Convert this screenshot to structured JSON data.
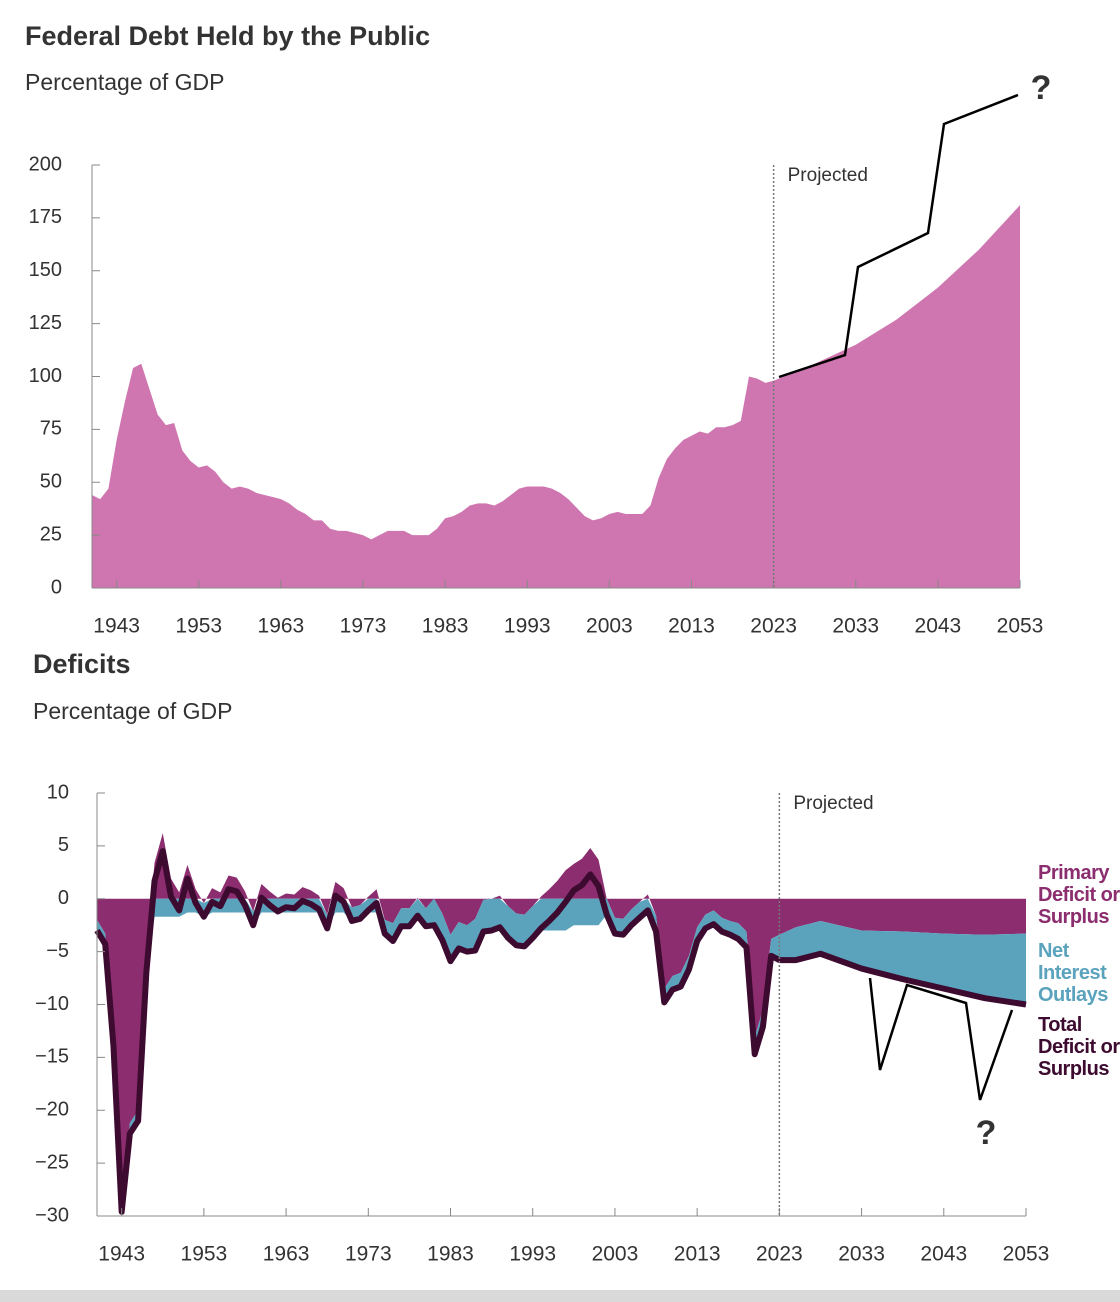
{
  "chart_data": [
    {
      "type": "area",
      "title": "Federal Debt Held by the Public",
      "subtitle": "Percentage of GDP",
      "color": "#cf76b0",
      "x": [
        1940,
        1941,
        1942,
        1943,
        1944,
        1945,
        1946,
        1947,
        1948,
        1949,
        1950,
        1951,
        1952,
        1953,
        1954,
        1955,
        1956,
        1957,
        1958,
        1959,
        1960,
        1961,
        1962,
        1963,
        1964,
        1965,
        1966,
        1967,
        1968,
        1969,
        1970,
        1971,
        1972,
        1973,
        1974,
        1975,
        1976,
        1977,
        1978,
        1979,
        1980,
        1981,
        1982,
        1983,
        1984,
        1985,
        1986,
        1987,
        1988,
        1989,
        1990,
        1991,
        1992,
        1993,
        1994,
        1995,
        1996,
        1997,
        1998,
        1999,
        2000,
        2001,
        2002,
        2003,
        2004,
        2005,
        2006,
        2007,
        2008,
        2009,
        2010,
        2011,
        2012,
        2013,
        2014,
        2015,
        2016,
        2017,
        2018,
        2019,
        2020,
        2021,
        2022,
        2023,
        2028,
        2033,
        2038,
        2043,
        2048,
        2053
      ],
      "values": [
        44,
        42,
        47,
        70,
        88,
        104,
        106,
        94,
        82,
        77,
        78,
        65,
        60,
        57,
        58,
        55,
        50,
        47,
        48,
        47,
        45,
        44,
        43,
        42,
        40,
        37,
        35,
        32,
        32,
        28,
        27,
        27,
        26,
        25,
        23,
        25,
        27,
        27,
        27,
        25,
        25,
        25,
        28,
        33,
        34,
        36,
        39,
        40,
        40,
        39,
        41,
        44,
        47,
        48,
        48,
        48,
        47,
        45,
        42,
        38,
        34,
        32,
        33,
        35,
        36,
        35,
        35,
        35,
        39,
        52,
        61,
        66,
        70,
        72,
        74,
        73,
        76,
        76,
        77,
        79,
        100,
        99,
        97,
        98,
        106,
        115,
        127,
        142,
        160,
        181
      ],
      "xlim": [
        1940,
        2053
      ],
      "xticks": [
        1943,
        1953,
        1963,
        1973,
        1983,
        1993,
        2003,
        2013,
        2023,
        2033,
        2043,
        2053
      ],
      "ylim": [
        0,
        200
      ],
      "yticks": [
        0,
        25,
        50,
        75,
        100,
        125,
        150,
        175,
        200
      ],
      "projected_x": 2023,
      "projected_label": "Projected",
      "annotation": "?"
    },
    {
      "type": "area",
      "title": "Deficits",
      "subtitle": "Percentage of GDP",
      "x": [
        1940,
        1941,
        1942,
        1943,
        1944,
        1945,
        1946,
        1947,
        1948,
        1949,
        1950,
        1951,
        1952,
        1953,
        1954,
        1955,
        1956,
        1957,
        1958,
        1959,
        1960,
        1961,
        1962,
        1963,
        1964,
        1965,
        1966,
        1967,
        1968,
        1969,
        1970,
        1971,
        1972,
        1973,
        1974,
        1975,
        1976,
        1977,
        1978,
        1979,
        1980,
        1981,
        1982,
        1983,
        1984,
        1985,
        1986,
        1987,
        1988,
        1989,
        1990,
        1991,
        1992,
        1993,
        1994,
        1995,
        1996,
        1997,
        1998,
        1999,
        2000,
        2001,
        2002,
        2003,
        2004,
        2005,
        2006,
        2007,
        2008,
        2009,
        2010,
        2011,
        2012,
        2013,
        2014,
        2015,
        2016,
        2017,
        2018,
        2019,
        2020,
        2021,
        2022,
        2023,
        2025,
        2028,
        2033,
        2038,
        2043,
        2048,
        2053
      ],
      "series": [
        {
          "name": "Primary Deficit or Surplus",
          "color": "#8b2d6e",
          "kind": "area",
          "values": [
            -2.0,
            -3.3,
            -12.9,
            -28.6,
            -21.2,
            -20.0,
            -5.3,
            3.4,
            6.2,
            1.9,
            0.6,
            3.2,
            0.9,
            -0.4,
            1.0,
            0.6,
            2.2,
            2.0,
            0.7,
            -1.2,
            1.4,
            0.7,
            0.1,
            0.5,
            0.4,
            1.1,
            0.8,
            0.3,
            -1.5,
            1.6,
            1.0,
            -0.8,
            -0.6,
            0.2,
            0.9,
            -2.0,
            -2.3,
            -0.9,
            -0.9,
            0.1,
            -0.9,
            0.0,
            -1.4,
            -3.4,
            -2.2,
            -2.5,
            -1.9,
            -0.1,
            0.0,
            0.3,
            -0.7,
            -1.4,
            -1.5,
            -0.7,
            0.2,
            0.9,
            1.7,
            2.7,
            3.3,
            3.8,
            4.8,
            3.7,
            0.0,
            -1.8,
            -1.9,
            -1.0,
            -0.3,
            0.4,
            -1.6,
            -8.5,
            -7.3,
            -7.0,
            -5.4,
            -2.7,
            -1.5,
            -1.1,
            -1.8,
            -2.1,
            -2.3,
            -3.1,
            -13.1,
            -10.5,
            -3.8,
            -3.4,
            -2.7,
            -2.1,
            -3.0,
            -3.1,
            -3.3,
            -3.4,
            -3.3
          ]
        },
        {
          "name": "Net Interest Outlays",
          "color": "#5ba3bd",
          "kind": "area",
          "values": [
            -1.0,
            -1.0,
            -1.0,
            -1.0,
            -1.0,
            -1.0,
            -1.7,
            -1.7,
            -1.7,
            -1.7,
            -1.7,
            -1.3,
            -1.3,
            -1.3,
            -1.3,
            -1.3,
            -1.3,
            -1.3,
            -1.3,
            -1.3,
            -1.3,
            -1.3,
            -1.3,
            -1.3,
            -1.3,
            -1.3,
            -1.3,
            -1.3,
            -1.3,
            -1.3,
            -1.3,
            -1.3,
            -1.3,
            -1.3,
            -1.3,
            -1.3,
            -1.7,
            -1.7,
            -1.7,
            -1.7,
            -1.7,
            -2.5,
            -2.5,
            -2.5,
            -2.5,
            -2.5,
            -3.0,
            -3.0,
            -3.0,
            -3.0,
            -3.0,
            -3.0,
            -3.0,
            -3.0,
            -3.0,
            -3.0,
            -3.0,
            -3.0,
            -2.5,
            -2.5,
            -2.5,
            -2.5,
            -1.5,
            -1.5,
            -1.5,
            -1.5,
            -1.5,
            -1.5,
            -1.5,
            -1.3,
            -1.3,
            -1.3,
            -1.3,
            -1.3,
            -1.3,
            -1.3,
            -1.3,
            -1.3,
            -1.5,
            -1.5,
            -1.6,
            -1.6,
            -1.6,
            -2.4,
            -3.1,
            -3.1,
            -3.6,
            -4.5,
            -5.2,
            -6.0,
            -6.7
          ]
        },
        {
          "name": "Total Deficit or Surplus",
          "color": "#3d0a30",
          "kind": "line",
          "values": [
            -3.0,
            -4.3,
            -13.9,
            -29.6,
            -22.2,
            -21.0,
            -7.0,
            1.7,
            4.5,
            0.2,
            -1.1,
            1.9,
            -0.4,
            -1.7,
            -0.3,
            -0.7,
            0.9,
            0.7,
            -0.6,
            -2.5,
            0.1,
            -0.6,
            -1.2,
            -0.8,
            -0.9,
            -0.2,
            -0.5,
            -1.0,
            -2.8,
            0.3,
            -0.3,
            -2.1,
            -1.9,
            -1.1,
            -0.4,
            -3.3,
            -4.0,
            -2.6,
            -2.6,
            -1.6,
            -2.6,
            -2.5,
            -3.9,
            -5.9,
            -4.7,
            -5.0,
            -4.9,
            -3.1,
            -3.0,
            -2.7,
            -3.7,
            -4.4,
            -4.5,
            -3.7,
            -2.8,
            -2.1,
            -1.3,
            -0.3,
            0.8,
            1.3,
            2.3,
            1.2,
            -1.5,
            -3.3,
            -3.4,
            -2.5,
            -1.8,
            -1.1,
            -3.1,
            -9.8,
            -8.6,
            -8.3,
            -6.7,
            -4.0,
            -2.8,
            -2.4,
            -3.1,
            -3.4,
            -3.8,
            -4.6,
            -14.7,
            -12.1,
            -5.4,
            -5.8,
            -5.8,
            -5.2,
            -6.6,
            -7.6,
            -8.5,
            -9.4,
            -10.0
          ]
        }
      ],
      "xlim": [
        1940,
        2053
      ],
      "xticks": [
        1943,
        1953,
        1963,
        1973,
        1983,
        1993,
        2003,
        2013,
        2023,
        2033,
        2043,
        2053
      ],
      "ylim": [
        -30,
        10
      ],
      "yticks": [
        {
          "value": -30,
          "label": "−30"
        },
        {
          "value": -25,
          "label": "−25"
        },
        {
          "value": -20,
          "label": "−20"
        },
        {
          "value": -15,
          "label": "−15"
        },
        {
          "value": -10,
          "label": "−10"
        },
        {
          "value": -5,
          "label": "−5"
        },
        0,
        5,
        10
      ],
      "projected_x": 2023,
      "projected_label": "Projected",
      "annotation": "?"
    }
  ]
}
